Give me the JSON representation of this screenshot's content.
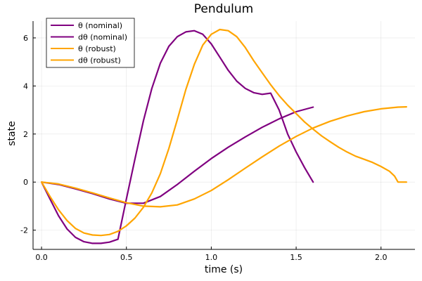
{
  "chart_data": {
    "type": "line",
    "title": "Pendulum",
    "xlabel": "time (s)",
    "ylabel": "state",
    "xlim": [
      -0.05,
      2.2
    ],
    "ylim": [
      -2.8,
      6.7
    ],
    "xticks": [
      0.0,
      0.5,
      1.0,
      1.5,
      2.0
    ],
    "xtick_labels": [
      "0.0",
      "0.5",
      "1.0",
      "1.5",
      "2.0"
    ],
    "yticks": [
      -2,
      0,
      2,
      4,
      6
    ],
    "ytick_labels": [
      "-2",
      "0",
      "2",
      "4",
      "6"
    ],
    "grid": true,
    "legend_position": "top-left",
    "series": [
      {
        "name": "θ (nominal)",
        "color": "#800080",
        "points": [
          [
            0.0,
            0.0
          ],
          [
            0.1,
            -0.1
          ],
          [
            0.2,
            -0.28
          ],
          [
            0.3,
            -0.48
          ],
          [
            0.4,
            -0.7
          ],
          [
            0.5,
            -0.88
          ],
          [
            0.6,
            -0.88
          ],
          [
            0.7,
            -0.6
          ],
          [
            0.8,
            -0.1
          ],
          [
            0.9,
            0.45
          ],
          [
            1.0,
            0.98
          ],
          [
            1.1,
            1.45
          ],
          [
            1.2,
            1.88
          ],
          [
            1.3,
            2.28
          ],
          [
            1.4,
            2.63
          ],
          [
            1.5,
            2.93
          ],
          [
            1.6,
            3.12
          ]
        ]
      },
      {
        "name": "dθ (nominal)",
        "color": "#800080",
        "points": [
          [
            0.0,
            0.0
          ],
          [
            0.05,
            -0.7
          ],
          [
            0.1,
            -1.4
          ],
          [
            0.15,
            -1.95
          ],
          [
            0.2,
            -2.3
          ],
          [
            0.25,
            -2.48
          ],
          [
            0.3,
            -2.55
          ],
          [
            0.35,
            -2.55
          ],
          [
            0.4,
            -2.5
          ],
          [
            0.45,
            -2.38
          ],
          [
            0.5,
            -0.7
          ],
          [
            0.55,
            0.95
          ],
          [
            0.6,
            2.55
          ],
          [
            0.65,
            3.9
          ],
          [
            0.7,
            4.95
          ],
          [
            0.75,
            5.65
          ],
          [
            0.8,
            6.05
          ],
          [
            0.85,
            6.25
          ],
          [
            0.9,
            6.3
          ],
          [
            0.95,
            6.15
          ],
          [
            1.0,
            5.75
          ],
          [
            1.05,
            5.2
          ],
          [
            1.1,
            4.65
          ],
          [
            1.15,
            4.2
          ],
          [
            1.2,
            3.9
          ],
          [
            1.25,
            3.72
          ],
          [
            1.3,
            3.65
          ],
          [
            1.35,
            3.7
          ],
          [
            1.4,
            3.0
          ],
          [
            1.45,
            2.0
          ],
          [
            1.5,
            1.25
          ],
          [
            1.55,
            0.6
          ],
          [
            1.6,
            0.0
          ]
        ]
      },
      {
        "name": "θ (robust)",
        "color": "#FFA500",
        "points": [
          [
            0.0,
            0.0
          ],
          [
            0.1,
            -0.08
          ],
          [
            0.2,
            -0.25
          ],
          [
            0.3,
            -0.45
          ],
          [
            0.4,
            -0.66
          ],
          [
            0.5,
            -0.86
          ],
          [
            0.6,
            -1.0
          ],
          [
            0.7,
            -1.03
          ],
          [
            0.8,
            -0.95
          ],
          [
            0.9,
            -0.7
          ],
          [
            1.0,
            -0.35
          ],
          [
            1.1,
            0.1
          ],
          [
            1.2,
            0.58
          ],
          [
            1.3,
            1.05
          ],
          [
            1.4,
            1.5
          ],
          [
            1.5,
            1.9
          ],
          [
            1.6,
            2.25
          ],
          [
            1.7,
            2.53
          ],
          [
            1.8,
            2.75
          ],
          [
            1.9,
            2.93
          ],
          [
            2.0,
            3.05
          ],
          [
            2.1,
            3.12
          ],
          [
            2.15,
            3.13
          ]
        ]
      },
      {
        "name": "dθ (robust)",
        "color": "#FFA500",
        "points": [
          [
            0.0,
            0.0
          ],
          [
            0.05,
            -0.6
          ],
          [
            0.1,
            -1.15
          ],
          [
            0.15,
            -1.6
          ],
          [
            0.2,
            -1.93
          ],
          [
            0.25,
            -2.12
          ],
          [
            0.3,
            -2.2
          ],
          [
            0.35,
            -2.22
          ],
          [
            0.4,
            -2.18
          ],
          [
            0.45,
            -2.05
          ],
          [
            0.5,
            -1.82
          ],
          [
            0.55,
            -1.5
          ],
          [
            0.6,
            -1.05
          ],
          [
            0.65,
            -0.45
          ],
          [
            0.7,
            0.35
          ],
          [
            0.75,
            1.4
          ],
          [
            0.8,
            2.6
          ],
          [
            0.85,
            3.85
          ],
          [
            0.9,
            4.9
          ],
          [
            0.95,
            5.7
          ],
          [
            1.0,
            6.15
          ],
          [
            1.05,
            6.35
          ],
          [
            1.1,
            6.3
          ],
          [
            1.15,
            6.05
          ],
          [
            1.2,
            5.6
          ],
          [
            1.25,
            5.05
          ],
          [
            1.3,
            4.55
          ],
          [
            1.35,
            4.05
          ],
          [
            1.4,
            3.6
          ],
          [
            1.45,
            3.2
          ],
          [
            1.5,
            2.85
          ],
          [
            1.55,
            2.5
          ],
          [
            1.6,
            2.2
          ],
          [
            1.65,
            1.92
          ],
          [
            1.7,
            1.68
          ],
          [
            1.75,
            1.45
          ],
          [
            1.8,
            1.25
          ],
          [
            1.85,
            1.08
          ],
          [
            1.9,
            0.95
          ],
          [
            1.95,
            0.82
          ],
          [
            2.0,
            0.65
          ],
          [
            2.05,
            0.45
          ],
          [
            2.08,
            0.25
          ],
          [
            2.1,
            0.0
          ],
          [
            2.15,
            0.0
          ]
        ]
      }
    ]
  }
}
